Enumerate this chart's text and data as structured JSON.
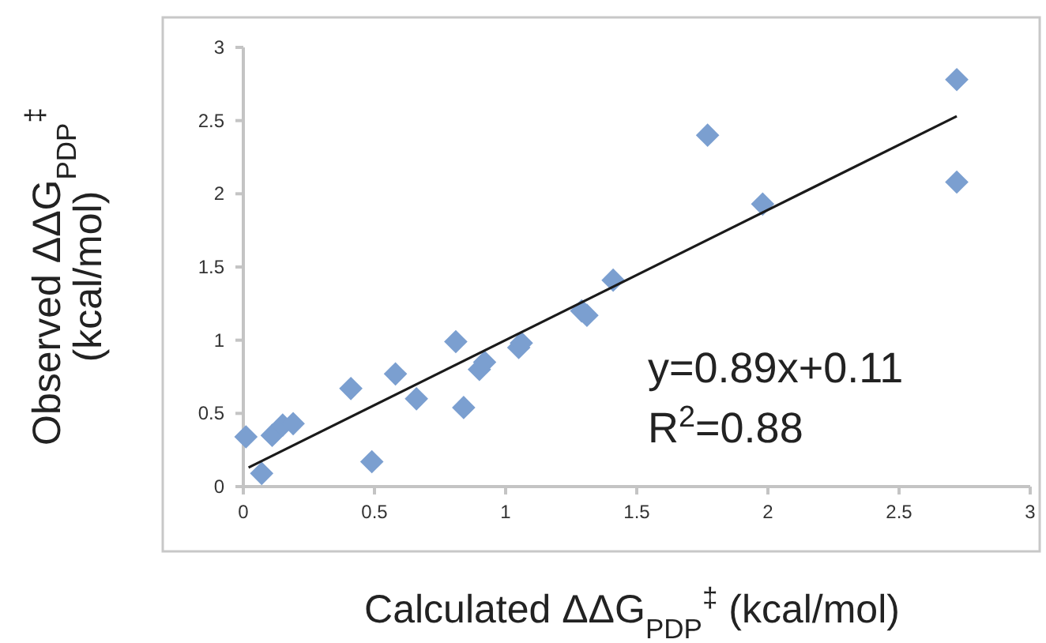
{
  "chart_data": {
    "type": "scatter",
    "xlabel": "Calculated ΔΔG$_{PDP}$$^{‡}$ (kcal/mol)",
    "ylabel": "Observed ΔΔG$_{PDP}$$^{‡}$\n(kcal/mol)",
    "xlim": [
      0,
      3
    ],
    "ylim": [
      0,
      3
    ],
    "xticks": [
      0,
      0.5,
      1,
      1.5,
      2,
      2.5,
      3
    ],
    "yticks": [
      0,
      0.5,
      1,
      1.5,
      2,
      2.5,
      3
    ],
    "grid": false,
    "annotations": [
      "y=0.89x+0.11",
      "R$^{2}$=0.88"
    ],
    "series": [
      {
        "marker": "diamond",
        "color": "#7b9fd0",
        "x": [
          0.01,
          0.07,
          0.11,
          0.15,
          0.19,
          0.41,
          0.49,
          0.58,
          0.66,
          0.81,
          0.84,
          0.9,
          0.92,
          1.05,
          1.06,
          1.29,
          1.31,
          1.41,
          1.77,
          1.98,
          2.72,
          2.72
        ],
        "values": [
          0.34,
          0.09,
          0.35,
          0.42,
          0.43,
          0.67,
          0.17,
          0.77,
          0.6,
          0.99,
          0.54,
          0.8,
          0.85,
          0.95,
          0.98,
          1.2,
          1.17,
          1.41,
          2.4,
          1.93,
          2.78,
          2.08
        ]
      },
      {
        "type": "line",
        "color": "#1a1a1a",
        "x": [
          0.02,
          2.72
        ],
        "values": [
          0.13,
          2.53
        ]
      }
    ]
  }
}
